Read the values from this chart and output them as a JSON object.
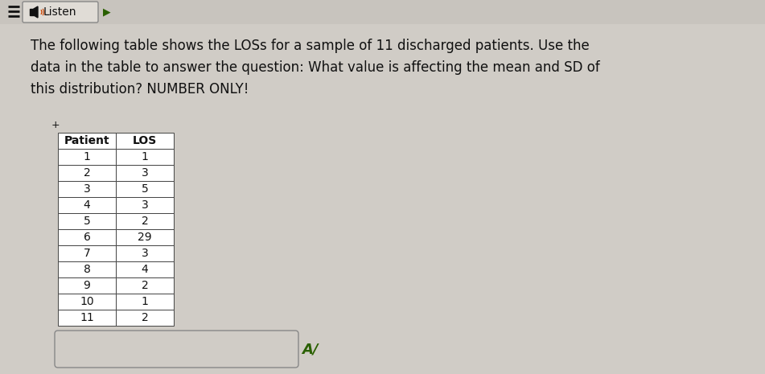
{
  "title_lines": [
    "The following table shows the LOSs for a sample of 11 discharged patients. Use the",
    "data in the table to answer the question: What value is affecting the mean and SD of",
    "this distribution? NUMBER ONLY!"
  ],
  "header": [
    "Patient",
    "LOS"
  ],
  "rows": [
    [
      1,
      1
    ],
    [
      2,
      3
    ],
    [
      3,
      5
    ],
    [
      4,
      3
    ],
    [
      5,
      2
    ],
    [
      6,
      29
    ],
    [
      7,
      3
    ],
    [
      8,
      4
    ],
    [
      9,
      2
    ],
    [
      10,
      1
    ],
    [
      11,
      2
    ]
  ],
  "bg_color": "#d0ccc6",
  "table_header_bg": "#ffffff",
  "table_cell_bg": "#ffffff",
  "table_border_color": "#444444",
  "text_color": "#111111",
  "top_bar_bg": "#c8c4be",
  "btn_bg": "#e0dcd6",
  "btn_border": "#888888",
  "listen_text": "Listen",
  "answer_label": "A/",
  "answer_label_color": "#2a6000"
}
